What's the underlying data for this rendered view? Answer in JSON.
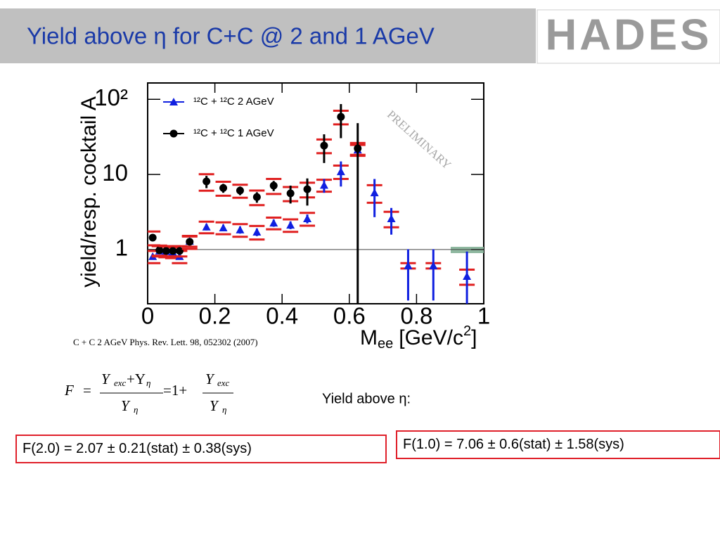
{
  "header": {
    "title": "Yield above η for C+C @ 2 and 1 AGeV",
    "logo": "HADES"
  },
  "chart_data": {
    "type": "scatter",
    "ylabel": "yield/resp. cocktail A",
    "xlabel": {
      "main": "M",
      "sub": "ee",
      "unit": "[GeV/c",
      "sup": "2",
      "close": "]"
    },
    "watermark": "PRELIMINARY",
    "xlim": [
      0,
      1
    ],
    "xticks": [
      0,
      0.2,
      0.4,
      0.6,
      0.8,
      1
    ],
    "ylim": [
      0.19,
      165
    ],
    "log_y": true,
    "yticks": [
      1,
      10,
      {
        "value": 100,
        "label": "10²"
      }
    ],
    "ref_line": 1,
    "series": [
      {
        "name": "¹²C + ¹²C  2 AGeV",
        "color": "#1020e0",
        "marker": "triangle",
        "x": [
          0.015,
          0.035,
          0.055,
          0.075,
          0.095,
          0.125,
          0.175,
          0.225,
          0.275,
          0.325,
          0.375,
          0.425,
          0.475,
          0.525,
          0.575,
          0.625,
          0.675,
          0.725,
          0.775,
          0.85,
          0.95
        ],
        "values": [
          0.81,
          0.96,
          0.94,
          0.92,
          0.81,
          1.29,
          2.0,
          1.95,
          1.83,
          1.71,
          2.26,
          2.12,
          2.58,
          7.2,
          10.9,
          21.2,
          5.7,
          2.58,
          0.61,
          0.61,
          0.44
        ],
        "errors": [
          0.06,
          0.06,
          0.06,
          0.06,
          0.06,
          0.1,
          0.2,
          0.2,
          0.2,
          0.2,
          0.25,
          0.25,
          0.35,
          1.5,
          4,
          3,
          3,
          1,
          0.4,
          0.4,
          0.5
        ],
        "sys": [
          0.15,
          0.15,
          0.15,
          0.15,
          0.15,
          0.2,
          0.35,
          0.35,
          0.35,
          0.35,
          0.4,
          0.4,
          0.5,
          1.3,
          2.2,
          3.5,
          1.5,
          0.6,
          0.05,
          0.05,
          0.1
        ]
      },
      {
        "name": "¹²C + ¹²C  1 AGeV",
        "color": "#000000",
        "marker": "circle",
        "x": [
          0.015,
          0.035,
          0.055,
          0.075,
          0.095,
          0.125,
          0.175,
          0.225,
          0.275,
          0.325,
          0.375,
          0.425,
          0.475,
          0.525,
          0.575,
          0.625
        ],
        "values": [
          1.44,
          0.98,
          0.96,
          0.96,
          0.96,
          1.27,
          8.07,
          6.6,
          6.1,
          5.0,
          7.1,
          5.6,
          6.35,
          24.2,
          58.4,
          22.2
        ],
        "errors": [
          0.08,
          0.06,
          0.06,
          0.06,
          0.06,
          0.1,
          1.5,
          0.9,
          0.8,
          0.8,
          1.1,
          1.5,
          2.5,
          10,
          28,
          26
        ],
        "sys": [
          0.3,
          0.15,
          0.15,
          0.15,
          0.15,
          0.25,
          2,
          1.4,
          1.2,
          1.1,
          1.6,
          1.2,
          1.4,
          5,
          12,
          4
        ]
      }
    ]
  },
  "citation": "C + C 2 AGeV Phys. Rev. Lett. 98, 052302 (2007)",
  "formula": [
    "F",
    "=",
    "Y",
    "exc",
    "+Y",
    "η",
    "Y",
    "η",
    "=1+",
    "Y",
    "exc",
    "Y",
    "η"
  ],
  "yield_label": "Yield above η:",
  "results": [
    "F(2.0) = 2.07 ± 0.21(stat) ± 0.38(sys)",
    "F(1.0) = 7.06 ± 0.6(stat) ± 1.58(sys)"
  ]
}
